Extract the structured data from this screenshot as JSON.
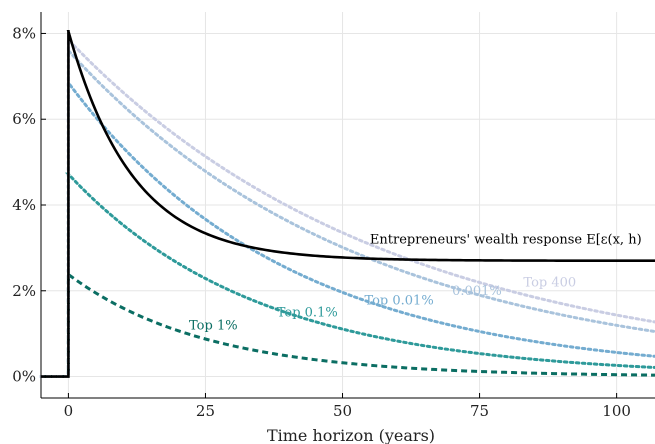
{
  "chart_data": {
    "type": "line",
    "xlabel": "Time horizon (years)",
    "ylabel": "",
    "xlim": [
      -5,
      107
    ],
    "ylim": [
      -0.5,
      8.5
    ],
    "x_ticks": [
      0,
      25,
      50,
      75,
      100
    ],
    "x_tick_labels": [
      "0",
      "25",
      "50",
      "75",
      "100"
    ],
    "y_ticks": [
      0,
      2,
      4,
      6,
      8
    ],
    "y_tick_labels": [
      "0%",
      "2%",
      "4%",
      "6%",
      "8%"
    ],
    "grid": true,
    "series": [
      {
        "name": "Entrepreneurs' wealth response E[ε(x,h)",
        "color": "#000000",
        "dash": "solid",
        "pre": 0,
        "start": 8.05,
        "asymptote": 2.7,
        "decay": 0.085
      },
      {
        "name": "Top 400",
        "color": "#c9cde3",
        "dash": "dot",
        "pre": 0,
        "start": 7.85,
        "asymptote": 0,
        "decay": 0.017
      },
      {
        "name": "0.001%",
        "color": "#a9c3dc",
        "dash": "dot",
        "pre": 0,
        "start": 7.6,
        "asymptote": 0,
        "decay": 0.0185
      },
      {
        "name": "Top 0.01%",
        "color": "#74acd0",
        "dash": "dot",
        "pre": 0,
        "start": 6.85,
        "asymptote": 0,
        "decay": 0.025
      },
      {
        "name": "Top 0.1%",
        "color": "#2e9a9a",
        "dash": "dot",
        "pre": 0,
        "start": 4.72,
        "asymptote": 0,
        "decay": 0.029
      },
      {
        "name": "Top 1%",
        "color": "#0b6e63",
        "dash": "dash",
        "pre": 0,
        "start": 2.38,
        "asymptote": 0,
        "decay": 0.04
      }
    ],
    "annotations": [
      {
        "text": "Entrepreneurs' wealth response E[ε(x, h)",
        "x": 55,
        "y": 3.1,
        "color": "#000000"
      },
      {
        "text": "Top 400",
        "x": 83,
        "y": 2.1,
        "color": "#c9cde3"
      },
      {
        "text": "0.001%",
        "x": 70,
        "y": 1.9,
        "color": "#a9c3dc"
      },
      {
        "text": "Top 0.01%",
        "x": 54,
        "y": 1.68,
        "color": "#74acd0"
      },
      {
        "text": "Top 0.1%",
        "x": 38,
        "y": 1.4,
        "color": "#2e9a9a"
      },
      {
        "text": "Top 1%",
        "x": 22,
        "y": 1.1,
        "color": "#0b6e63"
      }
    ]
  }
}
